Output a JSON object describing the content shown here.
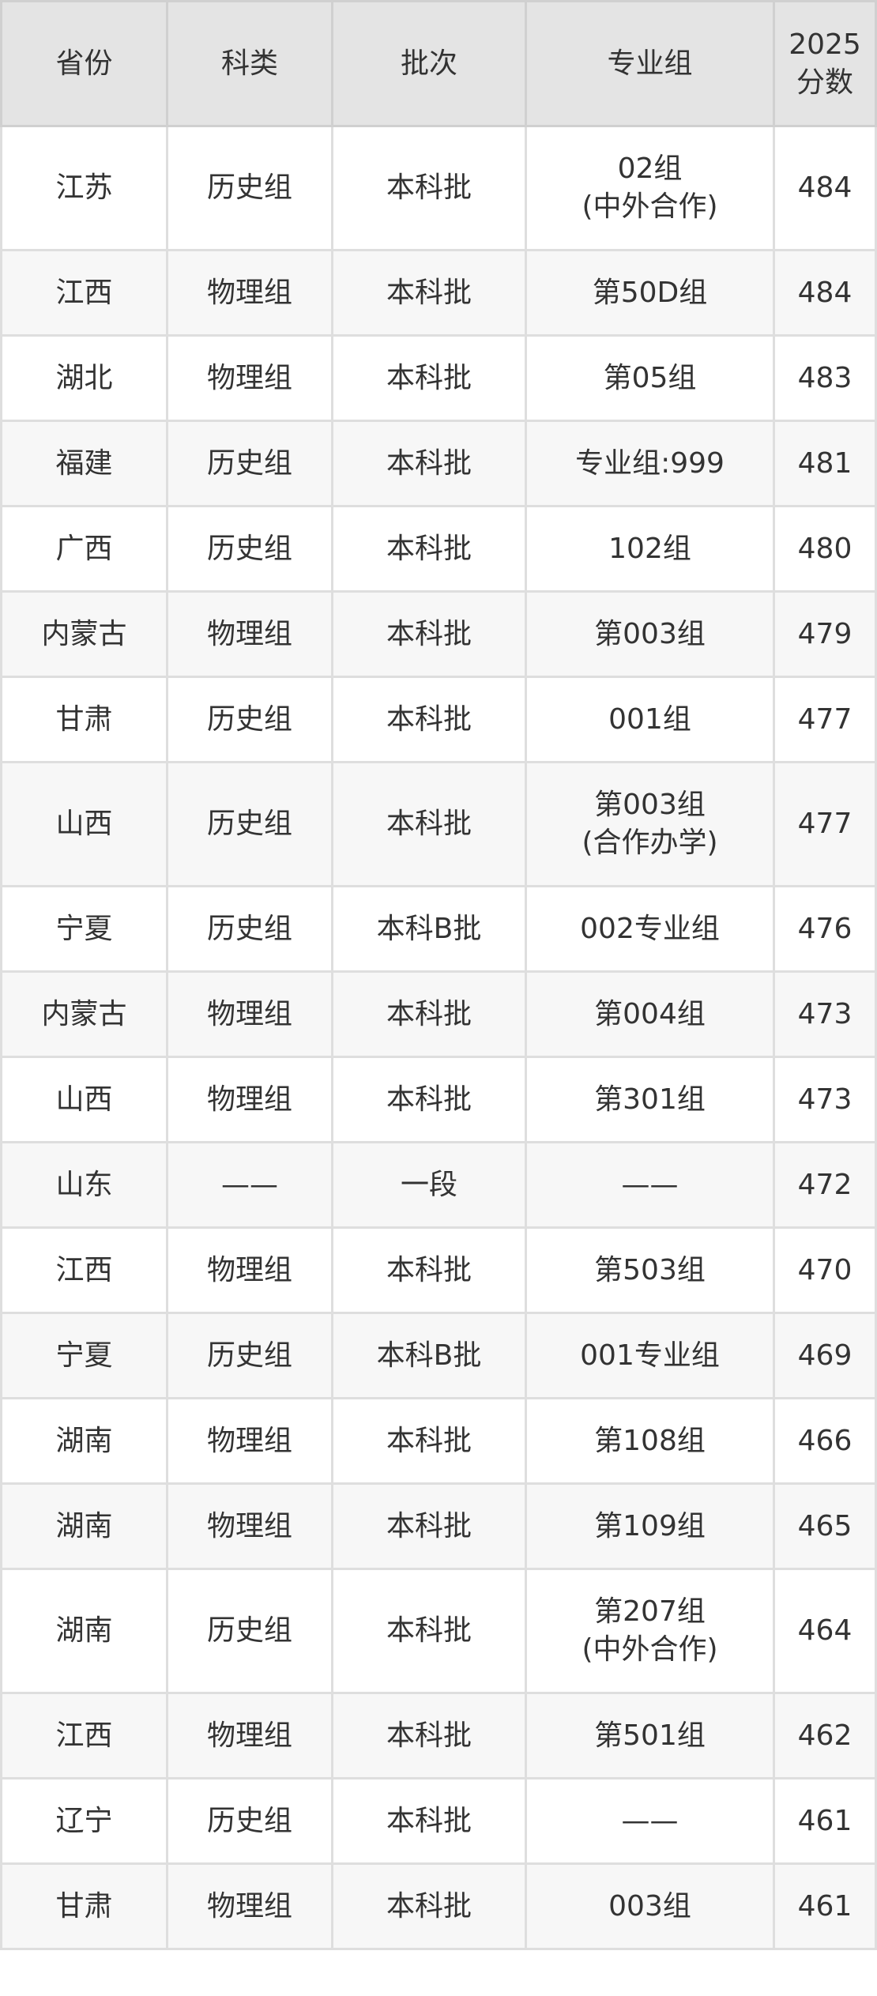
{
  "table": {
    "headers": [
      "省份",
      "科类",
      "批次",
      "专业组",
      "2025",
      "分数"
    ],
    "rows": [
      [
        "江苏",
        "历史组",
        "本科批",
        "02组",
        "(中外合作)",
        "484"
      ],
      [
        "江西",
        "物理组",
        "本科批",
        "第50D组",
        "",
        "484"
      ],
      [
        "湖北",
        "物理组",
        "本科批",
        "第05组",
        "",
        "483"
      ],
      [
        "福建",
        "历史组",
        "本科批",
        "专业组:999",
        "",
        "481"
      ],
      [
        "广西",
        "历史组",
        "本科批",
        "102组",
        "",
        "480"
      ],
      [
        "内蒙古",
        "物理组",
        "本科批",
        "第003组",
        "",
        "479"
      ],
      [
        "甘肃",
        "历史组",
        "本科批",
        "001组",
        "",
        "477"
      ],
      [
        "山西",
        "历史组",
        "本科批",
        "第003组",
        "(合作办学)",
        "477"
      ],
      [
        "宁夏",
        "历史组",
        "本科B批",
        "002专业组",
        "",
        "476"
      ],
      [
        "内蒙古",
        "物理组",
        "本科批",
        "第004组",
        "",
        "473"
      ],
      [
        "山西",
        "物理组",
        "本科批",
        "第301组",
        "",
        "473"
      ],
      [
        "山东",
        "——",
        "一段",
        "——",
        "",
        "472"
      ],
      [
        "江西",
        "物理组",
        "本科批",
        "第503组",
        "",
        "470"
      ],
      [
        "宁夏",
        "历史组",
        "本科B批",
        "001专业组",
        "",
        "469"
      ],
      [
        "湖南",
        "物理组",
        "本科批",
        "第108组",
        "",
        "466"
      ],
      [
        "湖南",
        "物理组",
        "本科批",
        "第109组",
        "",
        "465"
      ],
      [
        "湖南",
        "历史组",
        "本科批",
        "第207组",
        "(中外合作)",
        "464"
      ],
      [
        "江西",
        "物理组",
        "本科批",
        "第501组",
        "",
        "462"
      ],
      [
        "辽宁",
        "历史组",
        "本科批",
        "——",
        "",
        "461"
      ],
      [
        "甘肃",
        "物理组",
        "本科批",
        "003组",
        "",
        "461"
      ]
    ]
  }
}
